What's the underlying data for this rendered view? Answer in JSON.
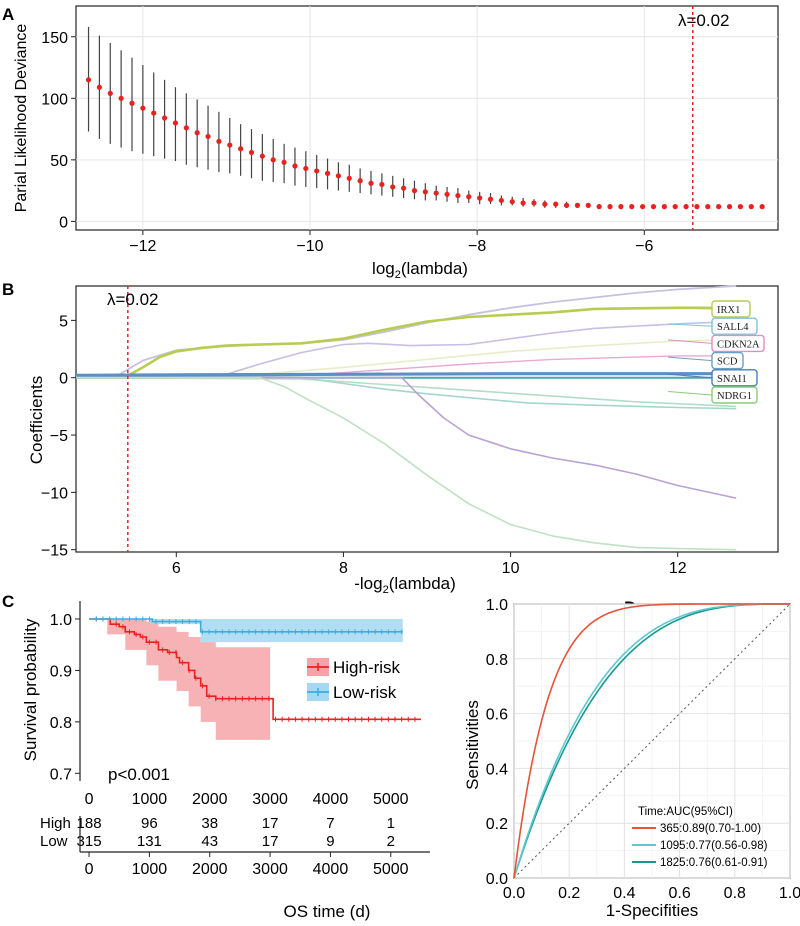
{
  "chart_data": [
    {
      "panel": "A",
      "type": "line",
      "title": "",
      "xlabel": "log2(lambda)",
      "xlabel_main": "log",
      "xlabel_sub": "2",
      "xlabel_tail": "(lambda)",
      "ylabel": "Parial Likelihood Deviance",
      "xlim": [
        -12.8,
        -4.4
      ],
      "ylim": [
        -7,
        175
      ],
      "xticks": [
        -12,
        -10,
        -8,
        -6
      ],
      "yticks": [
        0,
        50,
        100,
        150
      ],
      "annotation": "λ=0.02",
      "lambda_x": -5.42,
      "x": [
        -12.65,
        -12.52,
        -12.39,
        -12.26,
        -12.13,
        -12.0,
        -11.87,
        -11.74,
        -11.61,
        -11.48,
        -11.35,
        -11.22,
        -11.09,
        -10.96,
        -10.83,
        -10.7,
        -10.57,
        -10.44,
        -10.31,
        -10.18,
        -10.05,
        -9.92,
        -9.79,
        -9.66,
        -9.53,
        -9.4,
        -9.27,
        -9.14,
        -9.01,
        -8.88,
        -8.75,
        -8.62,
        -8.49,
        -8.36,
        -8.23,
        -8.1,
        -7.97,
        -7.84,
        -7.71,
        -7.58,
        -7.45,
        -7.32,
        -7.19,
        -7.06,
        -6.93,
        -6.8,
        -6.67,
        -6.54,
        -6.41,
        -6.28,
        -6.15,
        -6.02,
        -5.89,
        -5.76,
        -5.63,
        -5.5,
        -5.37,
        -5.24,
        -5.11,
        -4.98,
        -4.85,
        -4.72,
        -4.59
      ],
      "mean": [
        115,
        109,
        104,
        100,
        96,
        92,
        88,
        84,
        80,
        76,
        72,
        69,
        65,
        62,
        59,
        56,
        53,
        50,
        48,
        45,
        43,
        41,
        39,
        37,
        35,
        33,
        31,
        30,
        28,
        27,
        25,
        24,
        23,
        22,
        21,
        20,
        19,
        18,
        17,
        16,
        15,
        15,
        14,
        14,
        13,
        13,
        13,
        12,
        12,
        12,
        12,
        12,
        12,
        12,
        12,
        12,
        12,
        12,
        12,
        12,
        12,
        12,
        12
      ],
      "upper": [
        158,
        151,
        145,
        139,
        133,
        127,
        121,
        115,
        109,
        104,
        99,
        94,
        89,
        84,
        79,
        75,
        71,
        67,
        63,
        60,
        57,
        54,
        51,
        48,
        46,
        43,
        41,
        39,
        37,
        35,
        33,
        31,
        29,
        28,
        27,
        25,
        24,
        23,
        21,
        20,
        19,
        18,
        17,
        16,
        16,
        15,
        15,
        14,
        14,
        14,
        14,
        13,
        13,
        13,
        13,
        13,
        13,
        13,
        13,
        13,
        13,
        13,
        13
      ],
      "lower": [
        73,
        67,
        63,
        60,
        57,
        55,
        53,
        51,
        49,
        46,
        44,
        42,
        40,
        39,
        37,
        35,
        33,
        32,
        31,
        29,
        28,
        27,
        26,
        25,
        24,
        23,
        22,
        21,
        20,
        19,
        18,
        17,
        17,
        16,
        15,
        15,
        14,
        14,
        13,
        13,
        12,
        12,
        11,
        11,
        11,
        11,
        11,
        11,
        11,
        11,
        11,
        11,
        11,
        11,
        11,
        11,
        11,
        11,
        11,
        11,
        11,
        11,
        11
      ],
      "colors": {
        "point": "#e8221f",
        "bar": "#444444",
        "vline": "#e8221f"
      }
    },
    {
      "panel": "B",
      "type": "line",
      "xlabel": "-log2(lambda)",
      "xlabel_main": "-log",
      "xlabel_sub": "2",
      "xlabel_tail": "(lambda)",
      "ylabel": "Coefficients",
      "xlim": [
        4.8,
        13.2
      ],
      "ylim": [
        -15.2,
        8
      ],
      "xticks": [
        6,
        8,
        10,
        12
      ],
      "yticks": [
        -15,
        -10,
        -5,
        0,
        5
      ],
      "annotation": "λ=0.02",
      "lambda_x": 5.42,
      "labels": [
        {
          "name": "IRX1",
          "y": 6.1,
          "color": "#b9cc50"
        },
        {
          "name": "SALL4",
          "y": 4.7,
          "color": "#80c3dc"
        },
        {
          "name": "CDKN2A",
          "y": 3.3,
          "color": "#df8fbf"
        },
        {
          "name": "SCD",
          "y": 1.8,
          "color": "#6b9ec4"
        },
        {
          "name": "SNAI1",
          "y": 0.3,
          "color": "#4a7fb3"
        },
        {
          "name": "NDRG1",
          "y": -1.2,
          "color": "#88cc77"
        }
      ],
      "series": [
        {
          "name": "s1",
          "color": "#c7c1e1",
          "width": 1.8,
          "x": [
            4.8,
            5.3,
            5.6,
            6.0,
            6.5,
            7.0,
            7.5,
            8.0,
            8.5,
            9.0,
            9.5,
            10.0,
            10.5,
            11.0,
            11.5,
            12.0,
            12.7
          ],
          "values": [
            0.1,
            0.2,
            1.5,
            2.4,
            2.7,
            2.9,
            3.0,
            3.3,
            4.0,
            4.8,
            5.5,
            6.1,
            6.6,
            7.0,
            7.4,
            7.7,
            8.0
          ]
        },
        {
          "name": "IRX1",
          "color": "#b9cc50",
          "width": 2.6,
          "x": [
            4.8,
            5.4,
            5.6,
            5.8,
            6.0,
            6.3,
            6.6,
            7.0,
            7.5,
            8.0,
            8.5,
            9.0,
            9.5,
            10.0,
            10.5,
            11.0,
            12.0,
            12.7
          ],
          "values": [
            0.1,
            0.1,
            0.9,
            1.8,
            2.3,
            2.6,
            2.8,
            2.9,
            3.0,
            3.4,
            4.2,
            4.9,
            5.3,
            5.5,
            5.7,
            6.0,
            6.1,
            6.1
          ]
        },
        {
          "name": "SALL4",
          "color": "#c8bde2",
          "width": 1.6,
          "x": [
            4.8,
            6.2,
            6.6,
            7.0,
            7.5,
            8.0,
            8.3,
            8.8,
            9.5,
            10.0,
            10.5,
            11.0,
            12.0,
            12.7
          ],
          "values": [
            0.0,
            0.0,
            0.3,
            1.2,
            2.2,
            2.9,
            3.0,
            2.8,
            2.9,
            3.4,
            3.9,
            4.3,
            4.7,
            4.9
          ]
        },
        {
          "name": "CDKN2A",
          "color": "#e6edc8",
          "width": 1.6,
          "x": [
            4.8,
            7.0,
            8.0,
            9.0,
            10.0,
            11.0,
            12.0,
            12.7
          ],
          "values": [
            0.0,
            0.3,
            0.9,
            1.6,
            2.3,
            2.8,
            3.2,
            3.3
          ]
        },
        {
          "name": "SCD",
          "color": "#e9a9d3",
          "width": 1.4,
          "x": [
            4.8,
            7.5,
            8.5,
            9.5,
            10.5,
            11.5,
            12.0,
            12.7
          ],
          "values": [
            0.0,
            0.2,
            0.7,
            1.2,
            1.6,
            1.8,
            1.9,
            1.9
          ]
        },
        {
          "name": "SNAI1",
          "color": "#5a8fc8",
          "width": 3.2,
          "x": [
            4.8,
            6.0,
            8.0,
            10.0,
            12.0,
            12.7
          ],
          "values": [
            0.2,
            0.25,
            0.3,
            0.35,
            0.35,
            0.35
          ]
        },
        {
          "name": "flat",
          "color": "#4aa8a8",
          "width": 2.0,
          "x": [
            4.8,
            12.7
          ],
          "values": [
            0.0,
            0.0
          ]
        },
        {
          "name": "NDRG1",
          "color": "#b5dcc8",
          "width": 1.6,
          "x": [
            4.8,
            7.5,
            8.5,
            9.5,
            10.5,
            11.5,
            12.7
          ],
          "values": [
            0.0,
            -0.1,
            -0.6,
            -1.1,
            -1.6,
            -2.1,
            -2.5
          ]
        },
        {
          "name": "s2",
          "color": "#a5d6cc",
          "width": 1.6,
          "x": [
            4.8,
            7.5,
            8.0,
            8.5,
            9.0,
            9.6,
            10.2,
            11.0,
            12.0,
            12.7
          ],
          "values": [
            0.0,
            0.0,
            -0.5,
            -1.0,
            -1.4,
            -1.8,
            -2.2,
            -2.4,
            -2.6,
            -2.7
          ]
        },
        {
          "name": "s3",
          "color": "#b9a1d4",
          "width": 1.6,
          "x": [
            4.8,
            8.7,
            8.9,
            9.2,
            9.5,
            10.0,
            10.5,
            11.0,
            11.5,
            12.0,
            12.7
          ],
          "values": [
            0.0,
            0.0,
            -1.5,
            -3.5,
            -5.0,
            -6.2,
            -7.0,
            -7.6,
            -8.4,
            -9.4,
            -10.5
          ]
        },
        {
          "name": "s4",
          "color": "#bfe1c4",
          "width": 1.6,
          "x": [
            4.8,
            7.0,
            7.3,
            7.6,
            8.0,
            8.5,
            9.0,
            9.5,
            10.0,
            10.5,
            11.0,
            11.5,
            12.0,
            12.7
          ],
          "values": [
            0.0,
            0.0,
            -0.8,
            -2.0,
            -3.5,
            -5.8,
            -8.5,
            -11.0,
            -12.8,
            -13.8,
            -14.4,
            -14.8,
            -14.9,
            -15.0
          ]
        }
      ]
    },
    {
      "panel": "C",
      "type": "line",
      "xlabel": "OS time (d)",
      "ylabel": "Survival probability",
      "xlim": [
        -150,
        5650
      ],
      "ylim": [
        0.685,
        1.035
      ],
      "xticks": [
        0,
        1000,
        2000,
        3000,
        4000,
        5000
      ],
      "yticks": [
        0.7,
        0.8,
        0.9,
        1.0
      ],
      "ytick_labels": [
        "0.7",
        "0.8",
        "0.9",
        "1.0"
      ],
      "pvalue": "p<0.001",
      "legend": [
        {
          "name": "High-risk",
          "color": "#e8221f",
          "fill": "#f4a4a8"
        },
        {
          "name": "Low-risk",
          "color": "#3aaee0",
          "fill": "#a5d8f2"
        }
      ],
      "series": [
        {
          "name": "High-risk",
          "color": "#e8221f",
          "x": [
            0,
            300,
            350,
            500,
            600,
            750,
            850,
            950,
            1150,
            1300,
            1450,
            1500,
            1650,
            1750,
            1850,
            1950,
            2100,
            3000,
            3050,
            5500
          ],
          "values": [
            1.0,
            1.0,
            0.99,
            0.985,
            0.975,
            0.97,
            0.965,
            0.955,
            0.94,
            0.935,
            0.925,
            0.915,
            0.9,
            0.885,
            0.87,
            0.85,
            0.845,
            0.845,
            0.805,
            0.805
          ]
        },
        {
          "name": "Low-risk",
          "color": "#3aaee0",
          "x": [
            0,
            1000,
            1050,
            1800,
            1850,
            5200
          ],
          "values": [
            1.0,
            1.0,
            0.995,
            0.995,
            0.975,
            0.975
          ]
        }
      ],
      "ci": [
        {
          "name": "High-risk",
          "x": [
            0,
            300,
            600,
            950,
            1150,
            1450,
            1650,
            1850,
            2100,
            3000,
            3000
          ],
          "upper": [
            1.0,
            1.0,
            1.0,
            0.995,
            0.985,
            0.975,
            0.965,
            0.955,
            0.945,
            0.945,
            0.945
          ],
          "lower": [
            1.0,
            0.97,
            0.94,
            0.91,
            0.88,
            0.86,
            0.83,
            0.8,
            0.765,
            0.765,
            0.765
          ]
        },
        {
          "name": "Low-risk",
          "x": [
            0,
            1000,
            1850,
            5200
          ],
          "upper": [
            1.0,
            1.0,
            1.0,
            1.0
          ],
          "lower": [
            1.0,
            0.99,
            0.955,
            0.955
          ]
        }
      ],
      "risk_table": {
        "times": [
          0,
          1000,
          2000,
          3000,
          4000,
          5000
        ],
        "rows": [
          {
            "label": "High",
            "values": [
              "188",
              "96",
              "38",
              "17",
              "7",
              "1"
            ]
          },
          {
            "label": "Low",
            "values": [
              "315",
              "131",
              "43",
              "17",
              "9",
              "2"
            ]
          }
        ]
      }
    },
    {
      "panel": "D",
      "type": "line",
      "xlabel": "1-Specifities",
      "ylabel": "Sensitivities",
      "xlim": [
        0,
        1
      ],
      "ylim": [
        0,
        1
      ],
      "xticks": [
        0,
        0.2,
        0.4,
        0.6,
        0.8,
        1.0
      ],
      "xtick_labels": [
        "0.0",
        "0.2",
        "0.4",
        "0.6",
        "0.8",
        "1.0"
      ],
      "yticks": [
        0,
        0.2,
        0.4,
        0.6,
        0.8,
        1.0
      ],
      "ytick_labels": [
        "0.0",
        "0.2",
        "0.4",
        "0.6",
        "0.8",
        "1.0"
      ],
      "legend_title": "Time:AUC(95%CI)",
      "series": [
        {
          "name": "365:0.89(0.70-1.00)",
          "color": "#e8513a",
          "auc": 0.89
        },
        {
          "name": "1095:0.77(0.56-0.98)",
          "color": "#5ec8d2",
          "auc": 0.77
        },
        {
          "name": "1825:0.76(0.61-0.91)",
          "color": "#159a8c",
          "auc": 0.76
        }
      ]
    }
  ],
  "panels": {
    "a": "A",
    "b": "B",
    "c": "C",
    "d": "D"
  }
}
